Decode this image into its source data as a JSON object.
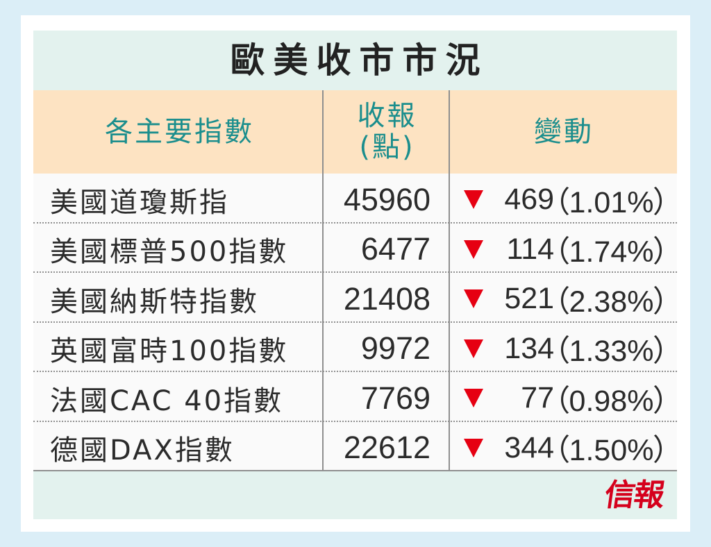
{
  "colors": {
    "page_background": "#dbeef7",
    "frame": "#ffffff",
    "panel": "#e3f2ee",
    "header_background": "#fde3c2",
    "header_text": "#1b8e8d",
    "title_text": "#222222",
    "body_text": "#2b2b2b",
    "row_background": "#fafafa",
    "rule": "#8f8f8f",
    "down": "#e60012",
    "logo": "#d5001c"
  },
  "chart_data": {
    "type": "table",
    "title": "歐美收市市況",
    "headers": {
      "index": "各主要指數",
      "close": [
        "收報",
        "(點)"
      ],
      "change": "變動"
    },
    "rows": [
      {
        "index": "美國道瓊斯指",
        "close": 45960,
        "icon": "down-triangle-icon",
        "change": 469,
        "change_pct": "（1.01%）"
      },
      {
        "index": "美國標普500指數",
        "close": 6477,
        "icon": "down-triangle-icon",
        "change": 114,
        "change_pct": "（1.74%）"
      },
      {
        "index": "美國納斯特指數",
        "close": 21408,
        "icon": "down-triangle-icon",
        "change": 521,
        "change_pct": "（2.38%）"
      },
      {
        "index": "英國富時100指數",
        "close": 9972,
        "icon": "down-triangle-icon",
        "change": 134,
        "change_pct": "（1.33%）"
      },
      {
        "index": "法國CAC 40指數",
        "close": 7769,
        "icon": "down-triangle-icon",
        "change": 77,
        "change_pct": "（0.98%）"
      },
      {
        "index": "德國DAX指數",
        "close": 22612,
        "icon": "down-triangle-icon",
        "change": 344,
        "change_pct": "（1.50%）"
      }
    ]
  },
  "logo": {
    "text": "信報"
  }
}
